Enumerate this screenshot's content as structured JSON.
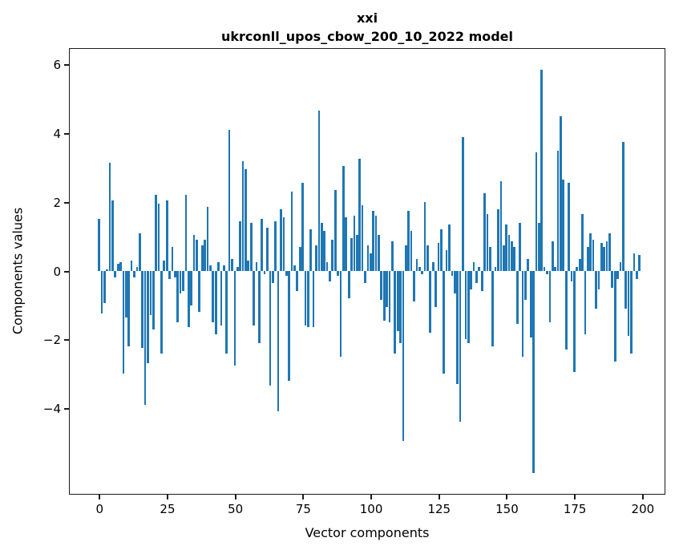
{
  "title_line1": "xxi",
  "title_line2": "ukrconll_upos_cbow_200_10_2022 model",
  "chart_data": {
    "type": "bar",
    "title": "xxi\nukrconll_upos_cbow_200_10_2022 model",
    "xlabel": "Vector components",
    "ylabel": "Components values",
    "bar_color": "#1f77b4",
    "grid": false,
    "legend": null,
    "x_ticks": [
      0,
      25,
      50,
      75,
      100,
      125,
      150,
      175,
      200
    ],
    "y_ticks": [
      6,
      4,
      2,
      0,
      -2,
      -4
    ],
    "xlim": [
      -11.3,
      208.3
    ],
    "ylim": [
      -6.5,
      6.5
    ],
    "values": [
      1.5,
      -1.25,
      -0.95,
      0.05,
      3.15,
      2.05,
      -0.2,
      0.2,
      0.25,
      -3.0,
      -1.35,
      -2.2,
      0.3,
      -0.2,
      0.1,
      1.1,
      -2.25,
      -3.9,
      -2.7,
      -1.3,
      -1.7,
      2.2,
      1.95,
      -2.4,
      0.3,
      2.05,
      -0.25,
      0.7,
      -0.2,
      -1.5,
      -0.65,
      -0.6,
      2.2,
      -1.65,
      -1.0,
      1.05,
      0.9,
      -1.2,
      0.75,
      0.9,
      1.85,
      0.15,
      -1.5,
      -1.85,
      0.25,
      -1.6,
      0.15,
      -2.4,
      4.1,
      0.35,
      -2.75,
      0.1,
      1.45,
      3.2,
      2.95,
      0.3,
      1.4,
      -1.6,
      0.25,
      -2.1,
      1.5,
      -0.1,
      1.25,
      -3.35,
      -0.35,
      1.45,
      -4.1,
      1.8,
      1.55,
      -0.15,
      -3.2,
      2.3,
      0.15,
      -0.6,
      0.7,
      2.55,
      -1.6,
      -1.65,
      1.2,
      -1.65,
      0.75,
      4.65,
      1.4,
      1.15,
      0.25,
      -0.3,
      0.9,
      2.35,
      -0.15,
      -2.5,
      3.05,
      1.55,
      -0.8,
      0.95,
      1.6,
      1.05,
      3.25,
      1.9,
      -0.35,
      0.75,
      0.5,
      1.75,
      1.6,
      1.05,
      -0.85,
      -1.45,
      -1.05,
      -1.5,
      0.85,
      -2.4,
      -1.75,
      -2.1,
      -4.95,
      0.75,
      1.75,
      1.15,
      -0.9,
      0.35,
      0.1,
      -0.1,
      2.0,
      0.75,
      -1.8,
      0.25,
      -1.05,
      0.8,
      1.2,
      -3.0,
      0.6,
      1.35,
      -0.15,
      -0.65,
      -3.3,
      -4.4,
      3.9,
      -2.0,
      -2.1,
      -0.55,
      0.25,
      -0.35,
      0.1,
      -0.6,
      2.25,
      1.65,
      0.7,
      -2.2,
      0.1,
      1.8,
      2.6,
      0.75,
      1.35,
      1.05,
      0.85,
      0.7,
      -1.55,
      1.4,
      -2.5,
      -0.85,
      0.35,
      -1.95,
      -5.9,
      3.45,
      1.4,
      5.85,
      0.1,
      -0.1,
      -1.5,
      0.85,
      0.1,
      3.5,
      4.5,
      2.65,
      -2.3,
      2.55,
      -0.3,
      -2.95,
      0.1,
      0.35,
      1.65,
      -1.85,
      0.7,
      1.1,
      0.9,
      -1.1,
      -0.55,
      0.8,
      0.7,
      0.85,
      1.1,
      -0.5,
      -2.65,
      -0.25,
      0.25,
      3.75,
      -1.1,
      -1.9,
      -2.4,
      0.5,
      -0.25,
      0.45
    ]
  }
}
